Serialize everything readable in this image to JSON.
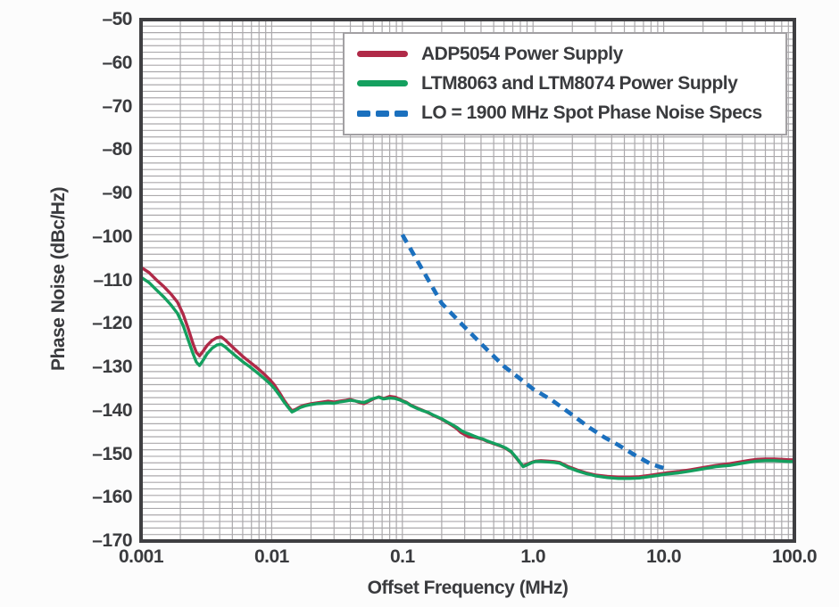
{
  "chart_data": {
    "type": "line",
    "title": "",
    "xlabel": "Offset Frequency (MHz)",
    "ylabel": "Phase Noise (dBc/Hz)",
    "x_scale": "log",
    "xlim": [
      0.001,
      100
    ],
    "ylim": [
      -170,
      -50
    ],
    "y_minor_step": 1.5,
    "grid": "on",
    "legend_position": "top-right-inside",
    "x_ticks": [
      {
        "value": 0.001,
        "label": "0.001"
      },
      {
        "value": 0.01,
        "label": "0.01"
      },
      {
        "value": 0.1,
        "label": "0.1"
      },
      {
        "value": 1.0,
        "label": "1.0"
      },
      {
        "value": 10.0,
        "label": "10.0"
      },
      {
        "value": 100.0,
        "label": "100.0"
      }
    ],
    "y_ticks": [
      {
        "value": -50,
        "label": "–50"
      },
      {
        "value": -60,
        "label": "–60"
      },
      {
        "value": -70,
        "label": "–70"
      },
      {
        "value": -80,
        "label": "–80"
      },
      {
        "value": -90,
        "label": "–90"
      },
      {
        "value": -100,
        "label": "–100"
      },
      {
        "value": -110,
        "label": "–110"
      },
      {
        "value": -120,
        "label": "–120"
      },
      {
        "value": -130,
        "label": "–130"
      },
      {
        "value": -140,
        "label": "–140"
      },
      {
        "value": -150,
        "label": "–150"
      },
      {
        "value": -160,
        "label": "–160"
      },
      {
        "value": -170,
        "label": "–170"
      }
    ],
    "colors": {
      "grid": "#ABA9AC",
      "axis_border": "#3F3F42",
      "text": "#3A3B3E",
      "plot_background": "#FFFFFF",
      "legend_border": "#A2A0A3"
    },
    "series": [
      {
        "name": "ADP5054 Power Supply",
        "color": "#B02A48",
        "style": "solid",
        "points": [
          [
            0.001,
            -107.0
          ],
          [
            0.00115,
            -108.2
          ],
          [
            0.0013,
            -109.8
          ],
          [
            0.0015,
            -111.5
          ],
          [
            0.0017,
            -113.2
          ],
          [
            0.0019,
            -115.0
          ],
          [
            0.0021,
            -117.8
          ],
          [
            0.0023,
            -121.2
          ],
          [
            0.0025,
            -124.6
          ],
          [
            0.00265,
            -126.6
          ],
          [
            0.0028,
            -127.4
          ],
          [
            0.003,
            -126.2
          ],
          [
            0.0032,
            -125.0
          ],
          [
            0.0035,
            -123.8
          ],
          [
            0.0038,
            -123.2
          ],
          [
            0.0041,
            -123.0
          ],
          [
            0.0044,
            -123.7
          ],
          [
            0.0048,
            -124.8
          ],
          [
            0.0053,
            -126.0
          ],
          [
            0.006,
            -127.5
          ],
          [
            0.0068,
            -128.8
          ],
          [
            0.0077,
            -130.1
          ],
          [
            0.0087,
            -131.5
          ],
          [
            0.0097,
            -132.9
          ],
          [
            0.0105,
            -134.1
          ],
          [
            0.0115,
            -135.9
          ],
          [
            0.0125,
            -137.7
          ],
          [
            0.0135,
            -139.1
          ],
          [
            0.0143,
            -140.0
          ],
          [
            0.0152,
            -139.7
          ],
          [
            0.0165,
            -139.1
          ],
          [
            0.018,
            -138.7
          ],
          [
            0.02,
            -138.4
          ],
          [
            0.022,
            -138.2
          ],
          [
            0.0245,
            -138.0
          ],
          [
            0.027,
            -137.8
          ],
          [
            0.03,
            -138.0
          ],
          [
            0.033,
            -137.8
          ],
          [
            0.037,
            -137.6
          ],
          [
            0.04,
            -137.4
          ],
          [
            0.044,
            -137.8
          ],
          [
            0.048,
            -138.2
          ],
          [
            0.051,
            -138.4
          ],
          [
            0.055,
            -137.9
          ],
          [
            0.06,
            -137.3
          ],
          [
            0.066,
            -136.8
          ],
          [
            0.072,
            -137.2
          ],
          [
            0.08,
            -136.7
          ],
          [
            0.088,
            -136.9
          ],
          [
            0.095,
            -137.3
          ],
          [
            0.1,
            -137.7
          ],
          [
            0.108,
            -138.1
          ],
          [
            0.116,
            -138.7
          ],
          [
            0.13,
            -139.4
          ],
          [
            0.143,
            -139.9
          ],
          [
            0.158,
            -140.5
          ],
          [
            0.175,
            -141.2
          ],
          [
            0.198,
            -141.9
          ],
          [
            0.22,
            -142.7
          ],
          [
            0.24,
            -143.4
          ],
          [
            0.26,
            -144.1
          ],
          [
            0.28,
            -145.0
          ],
          [
            0.3,
            -145.5
          ],
          [
            0.32,
            -146.0
          ],
          [
            0.35,
            -146.1
          ],
          [
            0.38,
            -146.3
          ],
          [
            0.42,
            -146.7
          ],
          [
            0.45,
            -147.1
          ],
          [
            0.5,
            -147.6
          ],
          [
            0.56,
            -148.1
          ],
          [
            0.62,
            -148.7
          ],
          [
            0.68,
            -149.5
          ],
          [
            0.75,
            -151.0
          ],
          [
            0.8,
            -152.1
          ],
          [
            0.84,
            -152.7
          ],
          [
            0.9,
            -152.3
          ],
          [
            0.97,
            -151.9
          ],
          [
            1.05,
            -151.6
          ],
          [
            1.15,
            -151.5
          ],
          [
            1.3,
            -151.6
          ],
          [
            1.45,
            -151.7
          ],
          [
            1.6,
            -151.9
          ],
          [
            1.87,
            -152.9
          ],
          [
            2.2,
            -153.7
          ],
          [
            2.55,
            -154.3
          ],
          [
            3.0,
            -154.8
          ],
          [
            3.7,
            -155.1
          ],
          [
            4.5,
            -155.3
          ],
          [
            5.5,
            -155.3
          ],
          [
            6.5,
            -155.2
          ],
          [
            7.7,
            -154.9
          ],
          [
            9.0,
            -154.6
          ],
          [
            10.5,
            -154.3
          ],
          [
            13,
            -154.0
          ],
          [
            16,
            -153.6
          ],
          [
            20,
            -153.1
          ],
          [
            25,
            -152.6
          ],
          [
            32,
            -152.2
          ],
          [
            40,
            -151.7
          ],
          [
            46,
            -151.4
          ],
          [
            52,
            -151.2
          ],
          [
            60,
            -151.1
          ],
          [
            70,
            -151.1
          ],
          [
            80,
            -151.2
          ],
          [
            90,
            -151.3
          ],
          [
            100,
            -151.3
          ]
        ]
      },
      {
        "name": "LTM8063 and LTM8074 Power Supply",
        "color": "#14A05F",
        "style": "solid",
        "points": [
          [
            0.001,
            -109.3
          ],
          [
            0.00115,
            -110.5
          ],
          [
            0.0013,
            -112.1
          ],
          [
            0.0015,
            -113.9
          ],
          [
            0.0017,
            -115.7
          ],
          [
            0.0019,
            -117.6
          ],
          [
            0.0021,
            -120.4
          ],
          [
            0.0023,
            -123.8
          ],
          [
            0.0025,
            -126.9
          ],
          [
            0.00265,
            -128.8
          ],
          [
            0.0028,
            -129.6
          ],
          [
            0.003,
            -128.3
          ],
          [
            0.0032,
            -126.9
          ],
          [
            0.0035,
            -125.6
          ],
          [
            0.0038,
            -124.9
          ],
          [
            0.0041,
            -124.7
          ],
          [
            0.0044,
            -125.3
          ],
          [
            0.0048,
            -126.3
          ],
          [
            0.0053,
            -127.4
          ],
          [
            0.006,
            -128.7
          ],
          [
            0.0068,
            -129.9
          ],
          [
            0.0077,
            -131.2
          ],
          [
            0.0087,
            -132.5
          ],
          [
            0.0097,
            -133.8
          ],
          [
            0.0105,
            -134.9
          ],
          [
            0.0115,
            -136.5
          ],
          [
            0.0125,
            -138.1
          ],
          [
            0.0135,
            -139.4
          ],
          [
            0.0143,
            -140.3
          ],
          [
            0.0152,
            -139.9
          ],
          [
            0.0165,
            -139.3
          ],
          [
            0.018,
            -138.9
          ],
          [
            0.02,
            -138.6
          ],
          [
            0.022,
            -138.4
          ],
          [
            0.0245,
            -138.3
          ],
          [
            0.027,
            -138.2
          ],
          [
            0.03,
            -138.3
          ],
          [
            0.033,
            -138.0
          ],
          [
            0.037,
            -137.8
          ],
          [
            0.04,
            -137.6
          ],
          [
            0.044,
            -137.8
          ],
          [
            0.048,
            -138.0
          ],
          [
            0.051,
            -138.1
          ],
          [
            0.055,
            -137.7
          ],
          [
            0.06,
            -137.2
          ],
          [
            0.066,
            -136.9
          ],
          [
            0.072,
            -137.3
          ],
          [
            0.08,
            -137.1
          ],
          [
            0.088,
            -137.2
          ],
          [
            0.095,
            -137.5
          ],
          [
            0.1,
            -137.8
          ],
          [
            0.108,
            -138.2
          ],
          [
            0.116,
            -138.8
          ],
          [
            0.13,
            -139.5
          ],
          [
            0.143,
            -140.0
          ],
          [
            0.158,
            -140.4
          ],
          [
            0.175,
            -141.1
          ],
          [
            0.198,
            -141.8
          ],
          [
            0.22,
            -142.6
          ],
          [
            0.24,
            -143.2
          ],
          [
            0.26,
            -143.8
          ],
          [
            0.28,
            -144.5
          ],
          [
            0.3,
            -145.0
          ],
          [
            0.32,
            -145.3
          ],
          [
            0.35,
            -145.8
          ],
          [
            0.38,
            -146.2
          ],
          [
            0.42,
            -146.6
          ],
          [
            0.45,
            -147.0
          ],
          [
            0.5,
            -147.5
          ],
          [
            0.56,
            -148.0
          ],
          [
            0.62,
            -148.6
          ],
          [
            0.68,
            -149.4
          ],
          [
            0.75,
            -150.9
          ],
          [
            0.8,
            -152.0
          ],
          [
            0.84,
            -152.9
          ],
          [
            0.9,
            -152.5
          ],
          [
            0.97,
            -152.0
          ],
          [
            1.05,
            -151.7
          ],
          [
            1.15,
            -151.7
          ],
          [
            1.3,
            -151.8
          ],
          [
            1.45,
            -151.9
          ],
          [
            1.6,
            -152.1
          ],
          [
            1.87,
            -153.1
          ],
          [
            2.2,
            -153.9
          ],
          [
            2.55,
            -154.5
          ],
          [
            3.0,
            -155.0
          ],
          [
            3.7,
            -155.4
          ],
          [
            4.5,
            -155.6
          ],
          [
            5.5,
            -155.6
          ],
          [
            6.5,
            -155.5
          ],
          [
            7.7,
            -155.2
          ],
          [
            9.0,
            -154.9
          ],
          [
            10.5,
            -154.6
          ],
          [
            13,
            -154.3
          ],
          [
            16,
            -153.9
          ],
          [
            20,
            -153.4
          ],
          [
            25,
            -152.9
          ],
          [
            32,
            -152.6
          ],
          [
            40,
            -152.1
          ],
          [
            46,
            -151.8
          ],
          [
            52,
            -151.6
          ],
          [
            60,
            -151.5
          ],
          [
            70,
            -151.5
          ],
          [
            80,
            -151.6
          ],
          [
            90,
            -151.7
          ],
          [
            100,
            -151.7
          ]
        ]
      },
      {
        "name": "LO = 1900 MHz Spot Phase Noise Specs",
        "color": "#1B70BE",
        "style": "dashed",
        "points": [
          [
            0.1,
            -99.5
          ],
          [
            0.2,
            -115.3
          ],
          [
            0.3,
            -120.8
          ],
          [
            0.45,
            -126.1
          ],
          [
            0.6,
            -129.8
          ],
          [
            0.8,
            -132.7
          ],
          [
            1.0,
            -135.0
          ],
          [
            1.4,
            -137.6
          ],
          [
            2.0,
            -141.0
          ],
          [
            2.7,
            -143.9
          ],
          [
            3.5,
            -146.1
          ],
          [
            4.5,
            -147.9
          ],
          [
            6.0,
            -150.2
          ],
          [
            8.0,
            -152.3
          ],
          [
            10.0,
            -153.2
          ]
        ]
      }
    ]
  }
}
